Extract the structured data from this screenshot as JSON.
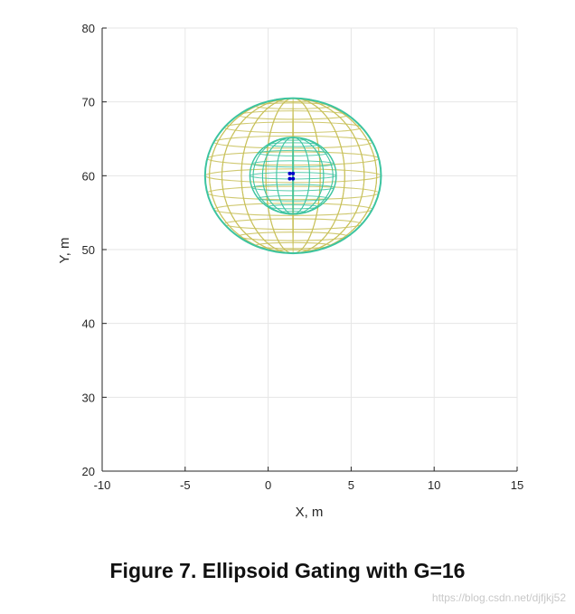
{
  "chart_data": {
    "type": "scatter",
    "xlabel": "X, m",
    "ylabel": "Y, m",
    "xlim": [
      -10,
      15
    ],
    "ylim": [
      20,
      80
    ],
    "xticks": [
      -10,
      -5,
      0,
      5,
      10,
      15
    ],
    "yticks": [
      20,
      30,
      40,
      50,
      60,
      70,
      80
    ],
    "grid": true,
    "series": [
      {
        "points": [
          [
            1.3,
            60.3
          ],
          [
            1.5,
            60.3
          ],
          [
            1.3,
            59.6
          ],
          [
            1.5,
            59.6
          ]
        ],
        "color": "#0000cc"
      }
    ],
    "gates": [
      {
        "center": [
          1.5,
          60
        ],
        "semi_axes": [
          5.3,
          10.5
        ],
        "color": "#c8c058"
      },
      {
        "center": [
          1.5,
          60
        ],
        "semi_axes": [
          2.6,
          5.2
        ],
        "color": "#3cc4a0"
      }
    ]
  },
  "caption": "Figure 7. Ellipsoid Gating with G=16",
  "watermark": "https://blog.csdn.net/djfjkj52"
}
